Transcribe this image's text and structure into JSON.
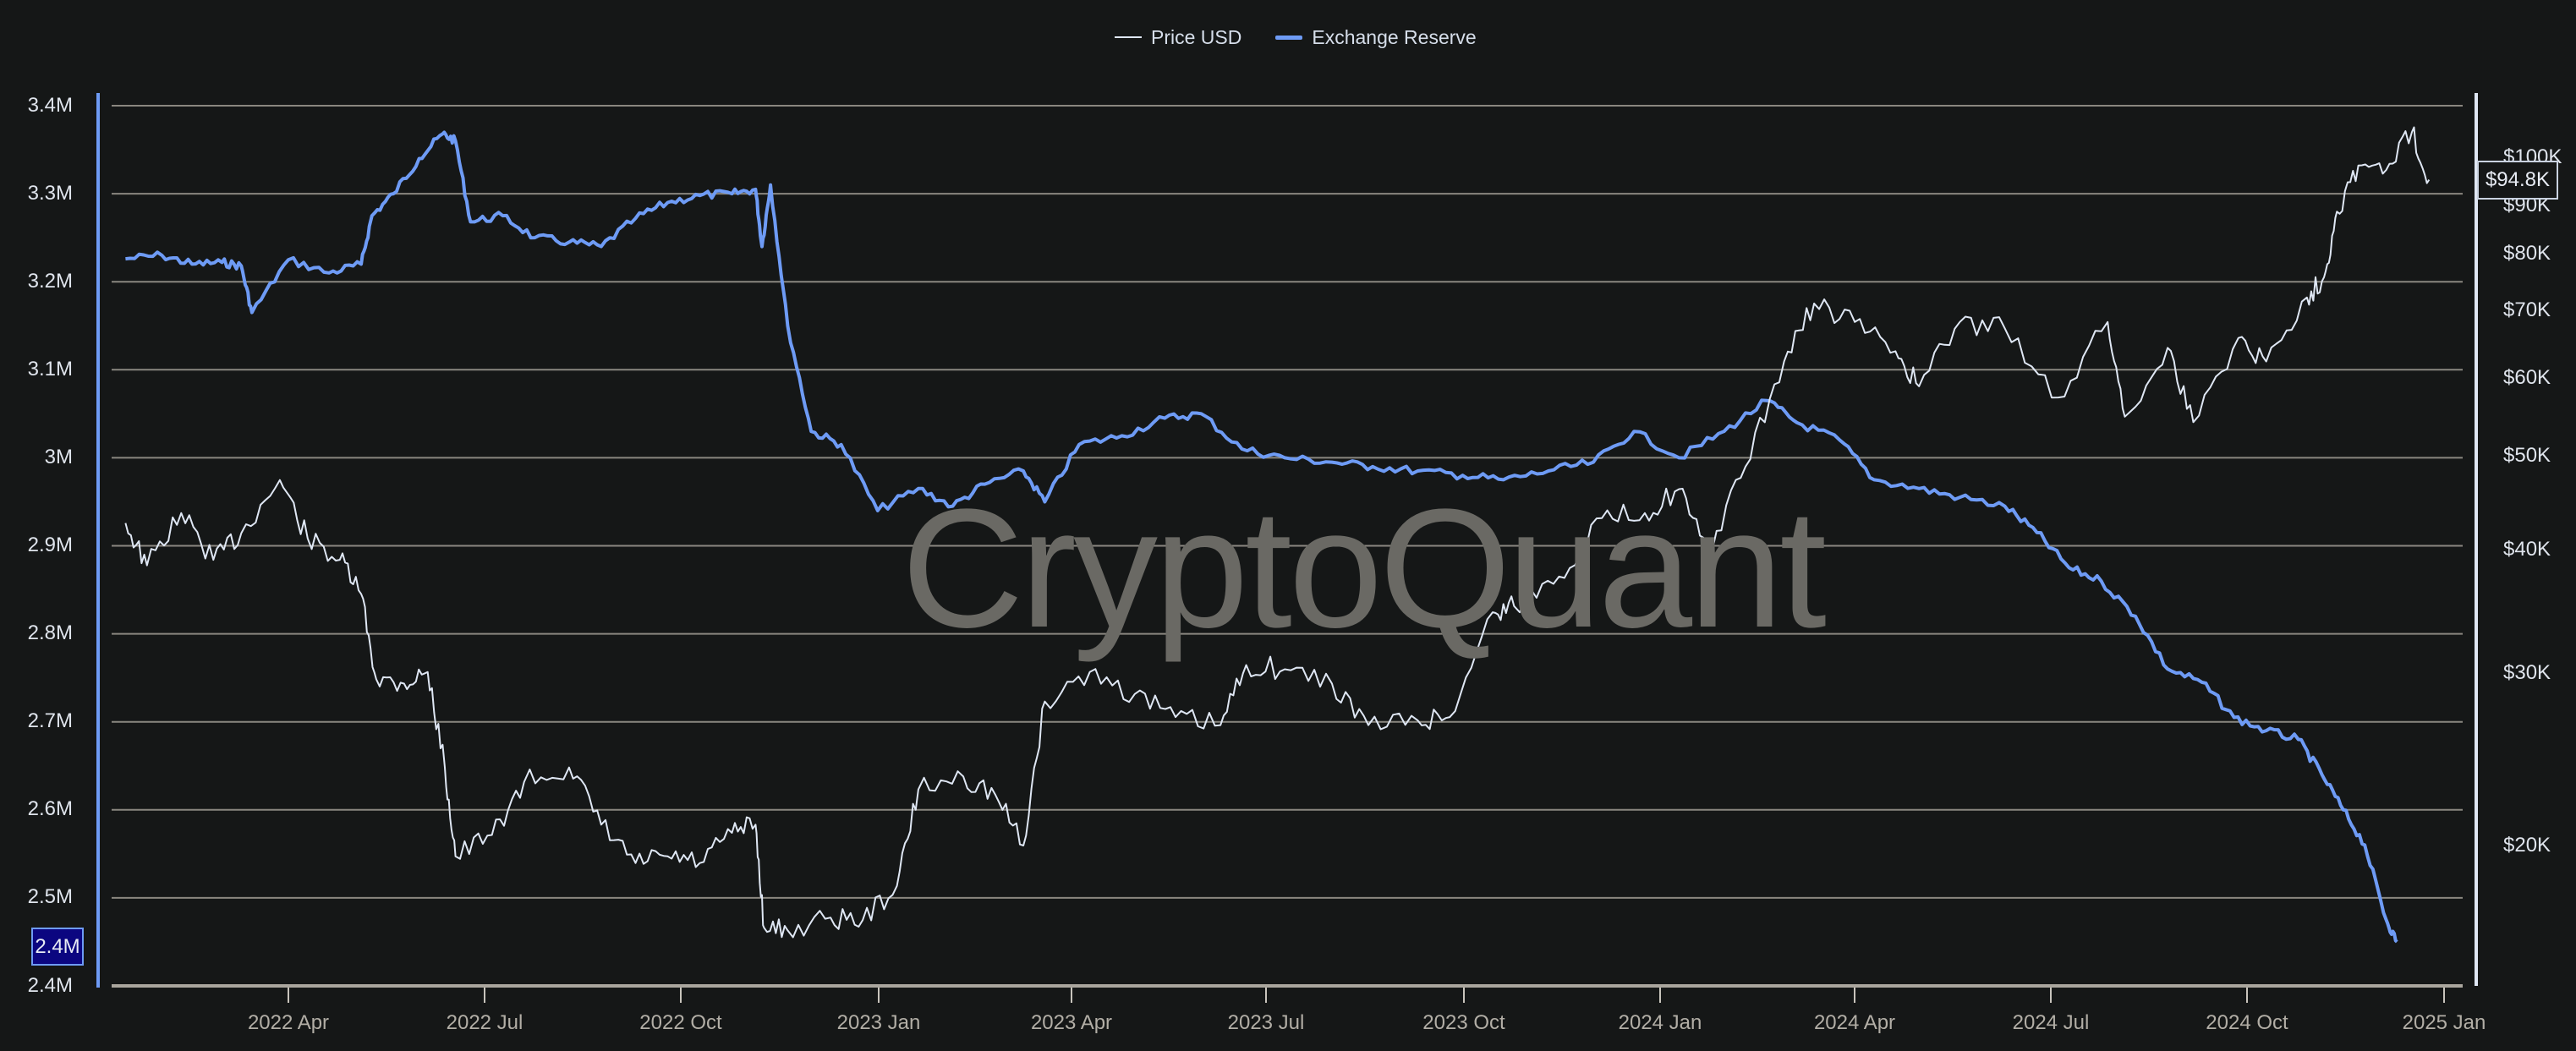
{
  "legend": {
    "price_label": "Price USD",
    "reserve_label": "Exchange Reserve"
  },
  "watermark": "CryptoQuant",
  "colors": {
    "background": "#151717",
    "gridline": "#8a8780",
    "price_line": "#dfe7f4",
    "reserve_line": "#6e9bf5",
    "left_badge_bg": "#0b0680"
  },
  "badges": {
    "left_current": "2.4M",
    "right_current": "$94.8K"
  },
  "left_axis_ticks": [
    "3.4M",
    "3.3M",
    "3.2M",
    "3.1M",
    "3M",
    "2.9M",
    "2.8M",
    "2.7M",
    "2.6M",
    "2.5M",
    "2.4M"
  ],
  "right_axis_ticks": [
    "$100K",
    "$90K",
    "$80K",
    "$70K",
    "$60K",
    "$50K",
    "$40K",
    "$30K",
    "$20K"
  ],
  "x_axis_ticks": [
    "2022 Apr",
    "2022 Jul",
    "2022 Oct",
    "2023 Jan",
    "2023 Apr",
    "2023 Jul",
    "2023 Oct",
    "2024 Jan",
    "2024 Apr",
    "2024 Jul",
    "2024 Oct",
    "2025 Jan"
  ],
  "chart_data": {
    "type": "line",
    "title": "",
    "xlabel": "",
    "ylabel_left": "Exchange Reserve",
    "ylabel_right": "Price USD",
    "ylim_left": [
      2400000,
      3400000
    ],
    "ylim_right_log": [
      17000,
      110000
    ],
    "right_axis_scale": "log",
    "grid": true,
    "legend_position": "top-center",
    "x_ticks": [
      "2022 Apr",
      "2022 Jul",
      "2022 Oct",
      "2023 Jan",
      "2023 Apr",
      "2023 Jul",
      "2023 Oct",
      "2024 Jan",
      "2024 Apr",
      "2024 Jul",
      "2024 Oct",
      "2025 Jan"
    ],
    "series": [
      {
        "name": "Exchange Reserve",
        "axis": "left",
        "unit": "BTC",
        "x": [
          "2022-01-15",
          "2022-02-01",
          "2022-02-15",
          "2022-03-01",
          "2022-03-10",
          "2022-03-15",
          "2022-04-01",
          "2022-04-20",
          "2022-05-05",
          "2022-05-10",
          "2022-05-20",
          "2022-06-01",
          "2022-06-12",
          "2022-06-18",
          "2022-06-25",
          "2022-07-10",
          "2022-07-25",
          "2022-08-10",
          "2022-08-25",
          "2022-09-10",
          "2022-09-25",
          "2022-10-10",
          "2022-10-25",
          "2022-11-05",
          "2022-11-08",
          "2022-11-12",
          "2022-11-20",
          "2022-12-01",
          "2022-12-15",
          "2023-01-01",
          "2023-01-20",
          "2023-02-05",
          "2023-02-20",
          "2023-03-10",
          "2023-03-20",
          "2023-04-05",
          "2023-04-25",
          "2023-05-15",
          "2023-06-01",
          "2023-06-20",
          "2023-07-10",
          "2023-08-01",
          "2023-08-20",
          "2023-09-10",
          "2023-10-01",
          "2023-10-20",
          "2023-11-10",
          "2023-12-01",
          "2023-12-20",
          "2024-01-10",
          "2024-01-31",
          "2024-02-20",
          "2024-03-05",
          "2024-03-25",
          "2024-04-10",
          "2024-05-01",
          "2024-05-20",
          "2024-06-10",
          "2024-06-25",
          "2024-07-10",
          "2024-07-25",
          "2024-08-10",
          "2024-08-25",
          "2024-09-10",
          "2024-09-25",
          "2024-10-10",
          "2024-10-25",
          "2024-11-05",
          "2024-11-15",
          "2024-11-25",
          "2024-12-05",
          "2024-12-10"
        ],
        "values": [
          3226000,
          3230000,
          3220000,
          3222000,
          3218000,
          3165000,
          3225000,
          3210000,
          3220000,
          3275000,
          3300000,
          3340000,
          3368000,
          3360000,
          3268000,
          3275000,
          3250000,
          3245000,
          3240000,
          3272000,
          3290000,
          3298000,
          3300000,
          3305000,
          3240000,
          3310000,
          3150000,
          3030000,
          3015000,
          2940000,
          2965000,
          2945000,
          2970000,
          2985000,
          2950000,
          3015000,
          3025000,
          3045000,
          3050000,
          3010000,
          3000000,
          2995000,
          2990000,
          2985000,
          2980000,
          2975000,
          2985000,
          2995000,
          3030000,
          3000000,
          3030000,
          3065000,
          3040000,
          3020000,
          2975000,
          2965000,
          2955000,
          2945000,
          2915000,
          2875000,
          2860000,
          2820000,
          2760000,
          2745000,
          2705000,
          2690000,
          2680000,
          2640000,
          2600000,
          2560000,
          2475000,
          2450000
        ]
      },
      {
        "name": "Price USD",
        "axis": "right",
        "unit": "USD",
        "x": [
          "2022-01-15",
          "2022-01-25",
          "2022-02-10",
          "2022-02-25",
          "2022-03-10",
          "2022-03-28",
          "2022-04-10",
          "2022-04-25",
          "2022-05-05",
          "2022-05-12",
          "2022-05-25",
          "2022-06-05",
          "2022-06-13",
          "2022-06-18",
          "2022-07-05",
          "2022-07-20",
          "2022-08-10",
          "2022-08-25",
          "2022-09-10",
          "2022-09-25",
          "2022-10-10",
          "2022-10-25",
          "2022-11-05",
          "2022-11-09",
          "2022-11-20",
          "2022-12-10",
          "2022-12-25",
          "2023-01-10",
          "2023-01-20",
          "2023-02-10",
          "2023-02-25",
          "2023-03-10",
          "2023-03-20",
          "2023-04-10",
          "2023-05-01",
          "2023-05-20",
          "2023-06-10",
          "2023-06-22",
          "2023-07-10",
          "2023-08-01",
          "2023-08-18",
          "2023-09-10",
          "2023-09-25",
          "2023-10-15",
          "2023-10-25",
          "2023-11-15",
          "2023-12-05",
          "2023-12-25",
          "2024-01-10",
          "2024-01-23",
          "2024-02-10",
          "2024-02-28",
          "2024-03-13",
          "2024-04-01",
          "2024-04-20",
          "2024-05-01",
          "2024-05-20",
          "2024-06-10",
          "2024-07-05",
          "2024-07-28",
          "2024-08-05",
          "2024-08-25",
          "2024-09-06",
          "2024-09-27",
          "2024-10-10",
          "2024-10-29",
          "2024-11-06",
          "2024-11-12",
          "2024-11-22",
          "2024-12-05",
          "2024-12-17",
          "2024-12-25"
        ],
        "values": [
          42500,
          38500,
          43500,
          39000,
          41500,
          47000,
          41000,
          39000,
          36000,
          29500,
          29200,
          30000,
          24000,
          19500,
          20500,
          23200,
          24000,
          21000,
          19200,
          19500,
          19200,
          20600,
          21000,
          16500,
          16400,
          16900,
          16800,
          18200,
          22800,
          23500,
          22500,
          20000,
          28000,
          30000,
          28500,
          27000,
          26500,
          30500,
          30200,
          29200,
          26500,
          26800,
          27000,
          34500,
          35000,
          37500,
          43000,
          43500,
          46000,
          39500,
          48500,
          62000,
          71000,
          68000,
          63500,
          58500,
          68000,
          67000,
          57000,
          68000,
          54500,
          64000,
          53800,
          65500,
          62000,
          72000,
          75500,
          88000,
          98000,
          97000,
          106000,
          94800
        ]
      }
    ]
  }
}
